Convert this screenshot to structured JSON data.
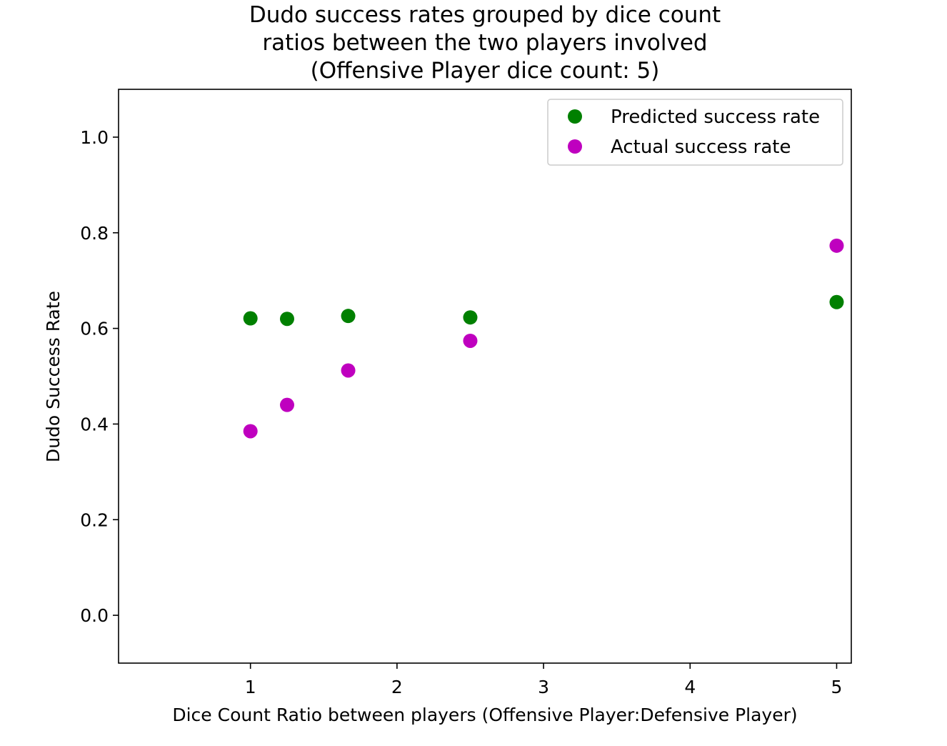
{
  "chart_data": {
    "type": "scatter",
    "title_lines": [
      "Dudo success rates grouped by dice count",
      "ratios between the two players involved",
      "(Offensive Player dice count: 5)"
    ],
    "xlabel": "Dice Count Ratio between players (Offensive Player:Defensive Player)",
    "ylabel": "Dudo Success Rate",
    "xlim": [
      0.1,
      5.1
    ],
    "ylim": [
      -0.1,
      1.1
    ],
    "xticks": [
      1,
      2,
      3,
      4,
      5
    ],
    "xtick_labels": [
      "1",
      "2",
      "3",
      "4",
      "5"
    ],
    "yticks": [
      0.0,
      0.2,
      0.4,
      0.6,
      0.8,
      1.0
    ],
    "ytick_labels": [
      "0.0",
      "0.2",
      "0.4",
      "0.6",
      "0.8",
      "1.0"
    ],
    "grid": false,
    "legend_position": "top-right",
    "series": [
      {
        "name": "Predicted success rate",
        "color": "#008000",
        "x": [
          1.0,
          1.25,
          1.667,
          2.5,
          5.0
        ],
        "y": [
          0.621,
          0.62,
          0.626,
          0.623,
          0.655
        ]
      },
      {
        "name": "Actual success rate",
        "color": "#bf00bf",
        "x": [
          1.0,
          1.25,
          1.667,
          2.5,
          5.0
        ],
        "y": [
          0.385,
          0.44,
          0.512,
          0.574,
          0.773
        ]
      }
    ]
  }
}
